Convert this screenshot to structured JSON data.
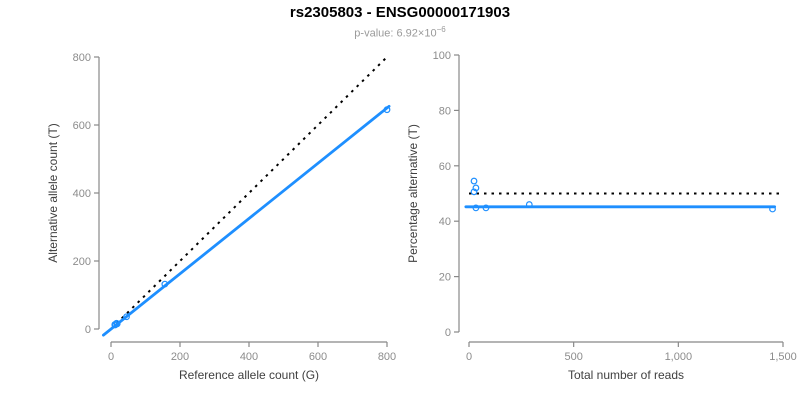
{
  "header": {
    "title": "rs2305803 - ENSG00000171903",
    "p_value_prefix": "p-value: 6.92×10",
    "p_value_exponent": "−6"
  },
  "colors": {
    "series_blue": "#1E8FFF",
    "reference_line_black": "#000000",
    "axis_line_gray": "#888888",
    "tick_label_gray": "#8C8C8C",
    "axis_title_gray": "#404040"
  },
  "chart_data": [
    {
      "type": "scatter",
      "name": "allele-counts-panel",
      "xlabel": "Reference allele count (G)",
      "ylabel": "Alternative allele count (T)",
      "xlim": [
        0,
        800
      ],
      "ylim": [
        0,
        800
      ],
      "xticks": {
        "values": [
          0,
          200,
          400,
          600,
          800
        ],
        "labels": [
          "0",
          "200",
          "400",
          "600",
          "800"
        ]
      },
      "yticks": {
        "values": [
          0,
          200,
          400,
          600,
          800
        ],
        "labels": [
          "0",
          "200",
          "400",
          "600",
          "800"
        ]
      },
      "grid": false,
      "points": [
        [
          11,
          13
        ],
        [
          12,
          12
        ],
        [
          16,
          17
        ],
        [
          18,
          15
        ],
        [
          45,
          36
        ],
        [
          156,
          132
        ],
        [
          800,
          645
        ]
      ],
      "reference_line": {
        "style": "dotted",
        "color": "#000000",
        "from": [
          0,
          0
        ],
        "to": [
          800,
          800
        ]
      },
      "fit_line": {
        "style": "solid",
        "color": "#1E8FFF",
        "from": [
          -22,
          -18
        ],
        "to": [
          806,
          655
        ]
      }
    },
    {
      "type": "scatter",
      "name": "percentage-panel",
      "xlabel": "Total number of reads",
      "ylabel": "Percentage alternative (T)",
      "xlim": [
        0,
        1500
      ],
      "ylim": [
        0,
        100
      ],
      "xticks": {
        "values": [
          0,
          500,
          1000,
          1500
        ],
        "labels": [
          "0",
          "500",
          "1,000",
          "1,500"
        ]
      },
      "yticks": {
        "values": [
          0,
          20,
          40,
          60,
          80,
          100
        ],
        "labels": [
          "0",
          "20",
          "40",
          "60",
          "80",
          "100"
        ]
      },
      "grid": false,
      "points": [
        [
          24,
          54.5
        ],
        [
          24,
          50.6
        ],
        [
          33,
          52
        ],
        [
          33,
          44.8
        ],
        [
          81,
          44.8
        ],
        [
          288,
          46
        ],
        [
          1450,
          44.4
        ]
      ],
      "reference_line": {
        "style": "dotted",
        "color": "#000000",
        "from": [
          0,
          50
        ],
        "to": [
          1500,
          50
        ]
      },
      "fit_line": {
        "style": "solid",
        "color": "#1E8FFF",
        "from": [
          -15,
          45.2
        ],
        "to": [
          1460,
          45.2
        ]
      }
    }
  ]
}
